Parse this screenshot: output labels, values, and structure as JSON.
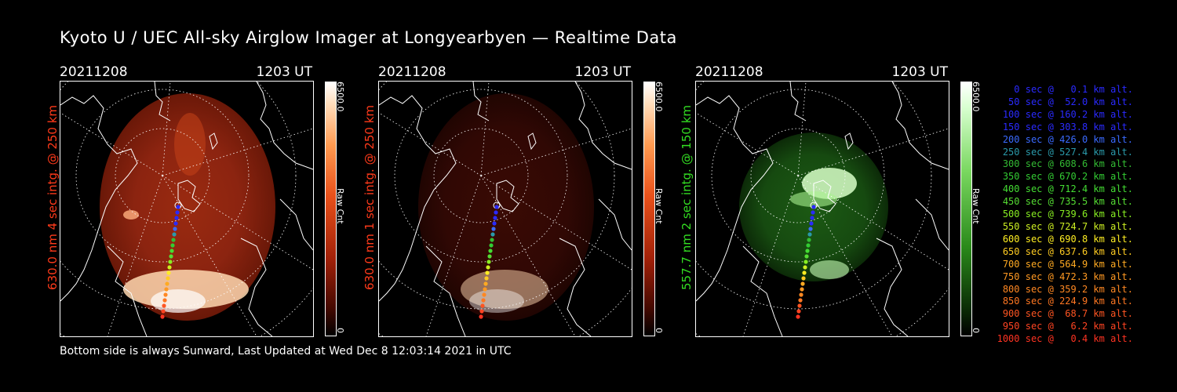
{
  "title": "Kyoto U / UEC All-sky Airglow Imager at Longyearbyen — Realtime Data",
  "panels": [
    {
      "date": "20211208",
      "ut": "1203 UT",
      "ylabel": "630.0 nm 4 sec intg. @ 250 km",
      "label_color": "#ff3a1a",
      "cb_max": "6500.0",
      "cb_min": "0",
      "cb_unit": "Raw Cnt",
      "colormap": "red"
    },
    {
      "date": "20211208",
      "ut": "1203 UT",
      "ylabel": "630.0 nm 1 sec intg. @ 250 km",
      "label_color": "#ff3a1a",
      "cb_max": "6500.0",
      "cb_min": "0",
      "cb_unit": "Raw Cnt",
      "colormap": "red"
    },
    {
      "date": "20211208",
      "ut": "1203 UT",
      "ylabel": "557.7 nm 2 sec intg. @ 150 km",
      "label_color": "#33dd22",
      "cb_max": "6500.0",
      "cb_min": "0",
      "cb_unit": "Raw Cnt",
      "colormap": "green"
    }
  ],
  "footer": "Bottom side is always Sunward, Last Updated at Wed Dec  8 12:03:14 2021 in UTC",
  "trajectory": [
    {
      "time": "0 sec",
      "alt": "0.1 km alt.",
      "color": "#2a2aff"
    },
    {
      "time": "50 sec",
      "alt": "52.0 km alt.",
      "color": "#2a2aff"
    },
    {
      "time": "100 sec",
      "alt": "160.2 km alt.",
      "color": "#2a2aff"
    },
    {
      "time": "150 sec",
      "alt": "303.8 km alt.",
      "color": "#2a2aff"
    },
    {
      "time": "200 sec",
      "alt": "426.0 km alt.",
      "color": "#3a6aff"
    },
    {
      "time": "250 sec",
      "alt": "527.4 km alt.",
      "color": "#2a9aaa"
    },
    {
      "time": "300 sec",
      "alt": "608.6 km alt.",
      "color": "#33bb33"
    },
    {
      "time": "350 sec",
      "alt": "670.2 km alt.",
      "color": "#33cc33"
    },
    {
      "time": "400 sec",
      "alt": "712.4 km alt.",
      "color": "#44dd33"
    },
    {
      "time": "450 sec",
      "alt": "735.5 km alt.",
      "color": "#55dd33"
    },
    {
      "time": "500 sec",
      "alt": "739.6 km alt.",
      "color": "#88ee22"
    },
    {
      "time": "550 sec",
      "alt": "724.7 km alt.",
      "color": "#ccee22"
    },
    {
      "time": "600 sec",
      "alt": "690.8 km alt.",
      "color": "#ffee22"
    },
    {
      "time": "650 sec",
      "alt": "637.6 km alt.",
      "color": "#ffcc22"
    },
    {
      "time": "700 sec",
      "alt": "564.9 km alt.",
      "color": "#ffaa22"
    },
    {
      "time": "750 sec",
      "alt": "472.3 km alt.",
      "color": "#ff9922"
    },
    {
      "time": "800 sec",
      "alt": "359.2 km alt.",
      "color": "#ff8822"
    },
    {
      "time": "850 sec",
      "alt": "224.9 km alt.",
      "color": "#ff7722"
    },
    {
      "time": "900 sec",
      "alt": "68.7 km alt.",
      "color": "#ff5522"
    },
    {
      "time": "950 sec",
      "alt": "6.2 km alt.",
      "color": "#ff4422"
    },
    {
      "time": "1000 sec",
      "alt": "0.4 km alt.",
      "color": "#ff3322"
    }
  ]
}
